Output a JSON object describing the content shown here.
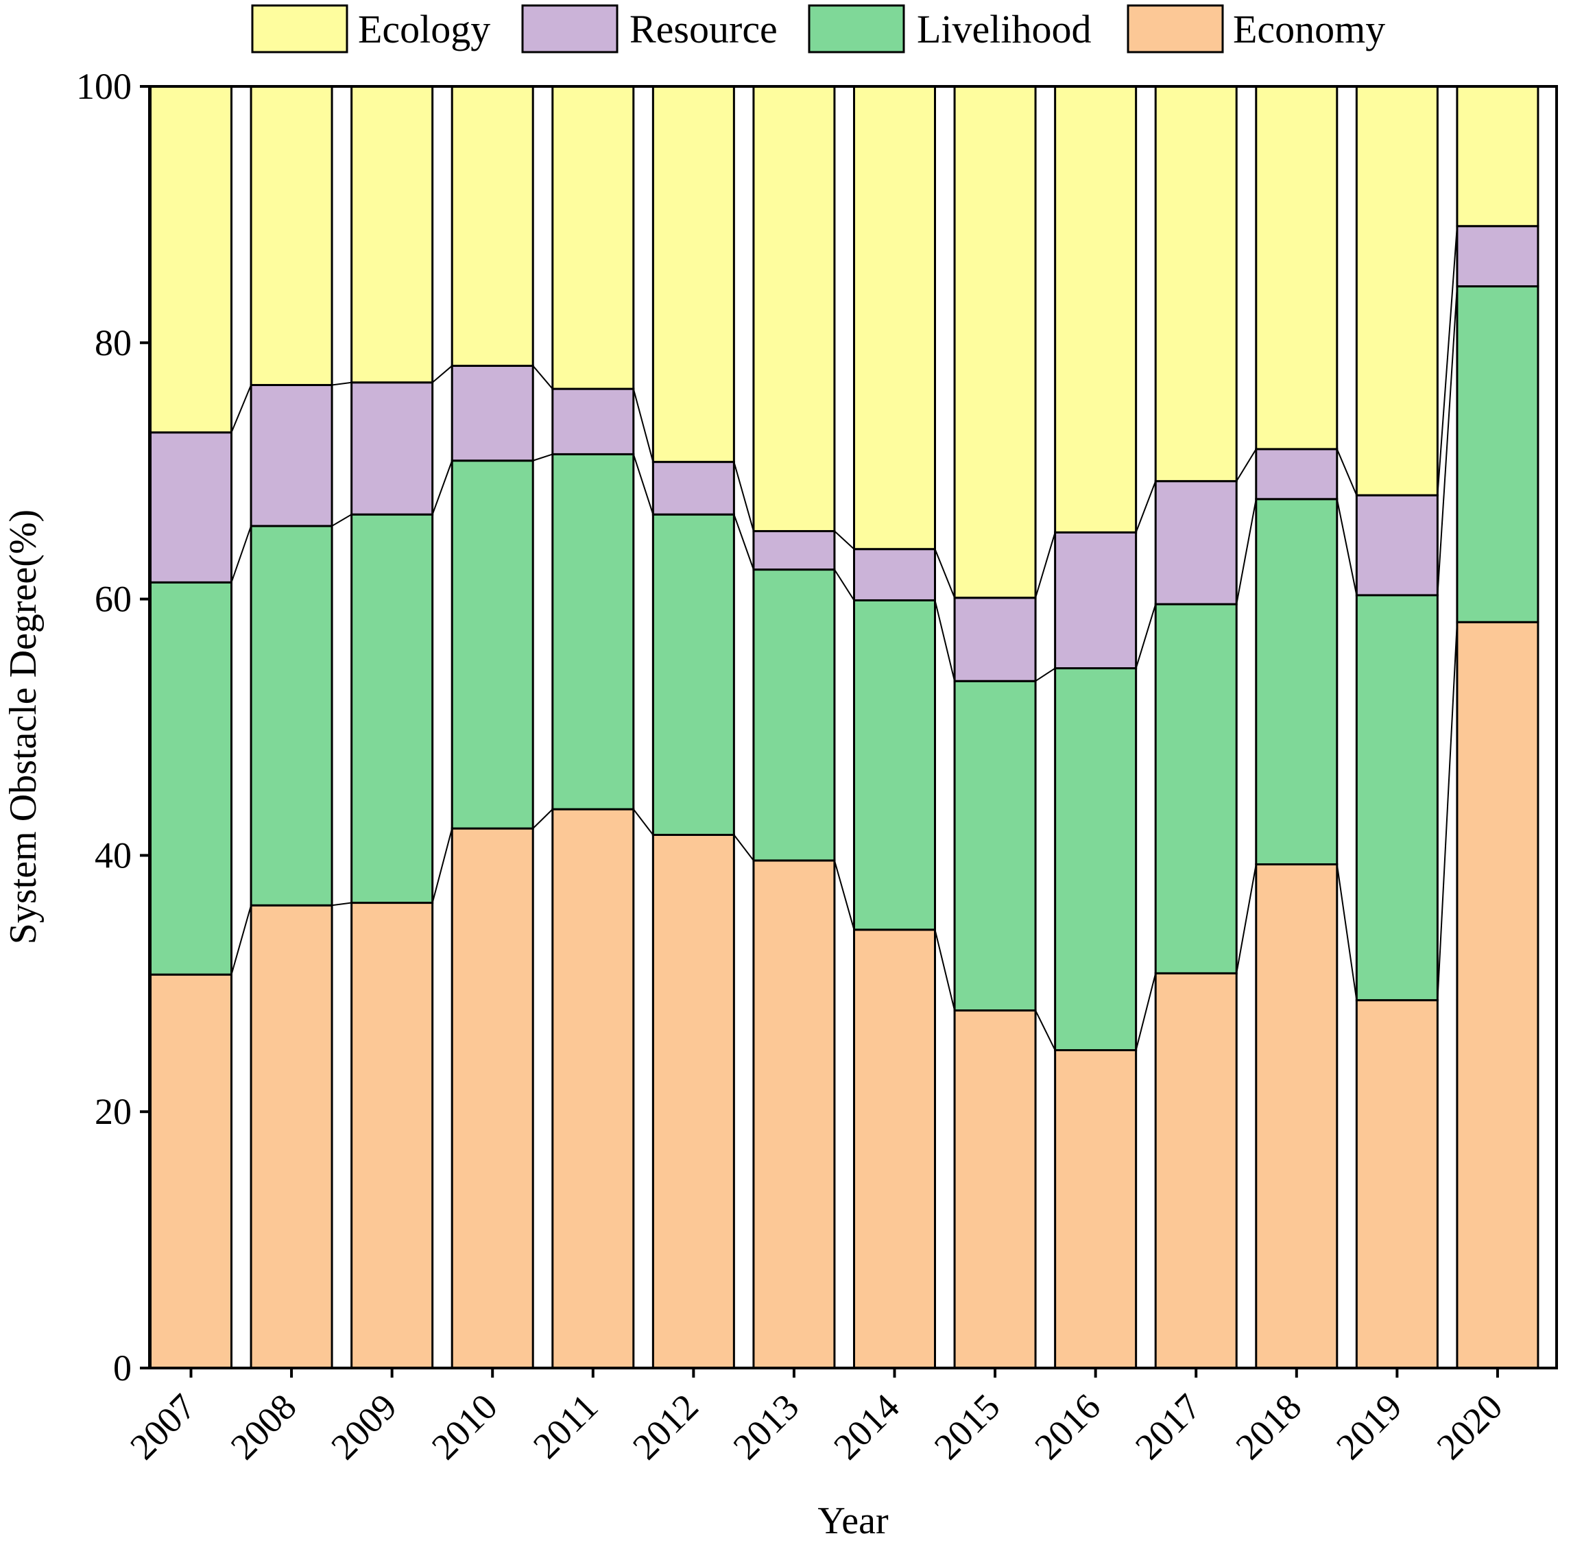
{
  "chart_data": {
    "type": "bar",
    "stacked": true,
    "title": "",
    "xlabel": "Year",
    "ylabel": "System Obstacle Degree(%)",
    "ylim": [
      0,
      100
    ],
    "yticks": [
      0,
      20,
      40,
      60,
      80,
      100
    ],
    "legend_position": "top",
    "categories": [
      "2007",
      "2008",
      "2009",
      "2010",
      "2011",
      "2012",
      "2013",
      "2014",
      "2015",
      "2016",
      "2017",
      "2018",
      "2019",
      "2020"
    ],
    "series": [
      {
        "name": "Economy",
        "color": "#FCC896",
        "values": [
          30.7,
          36.1,
          36.3,
          42.1,
          43.6,
          41.6,
          39.6,
          34.2,
          27.9,
          24.8,
          30.8,
          39.3,
          28.7,
          58.2
        ]
      },
      {
        "name": "Livelihood",
        "color": "#7FD898",
        "values": [
          30.6,
          29.6,
          30.3,
          28.7,
          27.7,
          25.0,
          22.7,
          25.7,
          25.7,
          29.8,
          28.8,
          28.5,
          31.6,
          26.2
        ]
      },
      {
        "name": "Resource",
        "color": "#CBB3D8",
        "values": [
          11.7,
          11.0,
          10.3,
          7.4,
          5.1,
          4.1,
          3.0,
          4.0,
          6.5,
          10.6,
          9.6,
          3.9,
          7.8,
          4.7
        ]
      },
      {
        "name": "Ecology",
        "color": "#FEFD9E",
        "values": [
          27.0,
          23.3,
          23.1,
          21.8,
          23.6,
          29.3,
          34.7,
          36.1,
          39.9,
          34.8,
          30.8,
          28.3,
          31.9,
          10.9
        ]
      }
    ],
    "legend": [
      "Ecology",
      "Resource",
      "Livelihood",
      "Economy"
    ]
  }
}
